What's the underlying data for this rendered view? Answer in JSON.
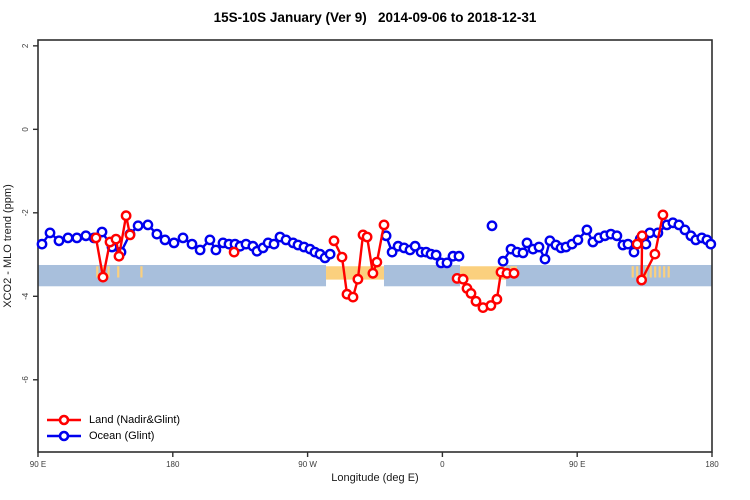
{
  "chart_data": {
    "type": "line",
    "title": "15S-10S January (Ver 9)   2014-09-06 to 2018-12-31",
    "xlabel": "Longitude (deg E)",
    "ylabel": "XCO2 - MLO trend (ppm)",
    "x_range": [
      90,
      540
    ],
    "ylim": [
      -7.73,
      2.14
    ],
    "grid": "off",
    "axis_color": "#2f2f2f",
    "tick_label_color": "#3c3c3c",
    "x_ticks": [
      {
        "value": 90,
        "label": "90 E"
      },
      {
        "value": 180,
        "label": "180"
      },
      {
        "value": 270,
        "label": "90 W"
      },
      {
        "value": 360,
        "label": "0"
      },
      {
        "value": 450,
        "label": "90 E"
      },
      {
        "value": 540,
        "label": "180"
      }
    ],
    "y_ticks": [
      {
        "value": 2,
        "label": "2"
      },
      {
        "value": 0,
        "label": "0"
      },
      {
        "value": -2,
        "label": "-2"
      },
      {
        "value": -4,
        "label": "-4"
      },
      {
        "value": -6,
        "label": "-6"
      }
    ],
    "bands": {
      "ocean_color": "#a8bfdc",
      "ocean_band_top": -3.25,
      "ocean_band_bottom": -3.76,
      "ocean_segments": [
        [
          90,
          282.3
        ],
        [
          321,
          371.8
        ],
        [
          402.5,
          540
        ]
      ],
      "land_color": "#fbd07e",
      "land_band_top": -3.28,
      "land_band_bottom": -3.6,
      "land_segments": [
        [
          282.3,
          321
        ],
        [
          371.8,
          402.5
        ]
      ],
      "land_tick_top": -3.28,
      "land_tick_bottom": -3.55,
      "land_tick_lons": [
        129.5,
        133.5,
        137,
        143.5,
        159,
        406,
        407.5,
        409,
        487,
        490,
        493,
        496,
        499,
        502,
        505,
        508,
        511
      ]
    },
    "legend": {
      "position": "bottom-left"
    },
    "series": [
      {
        "id": "land-series",
        "name": "Land (Nadir&Glint)",
        "color": "#ff0000",
        "segments": [
          [
            [
              128.7,
              -2.6
            ],
            [
              133.4,
              -3.54
            ],
            [
              138.1,
              -2.7
            ],
            [
              142.1,
              -2.63
            ],
            [
              144.1,
              -3.04
            ],
            [
              148.8,
              -2.07
            ],
            [
              151.4,
              -2.53
            ]
          ],
          [
            [
              287.6,
              -2.67
            ],
            [
              293.0,
              -3.06
            ],
            [
              296.3,
              -3.95
            ],
            [
              300.3,
              -4.02
            ],
            [
              303.6,
              -3.59
            ],
            [
              307.0,
              -2.53
            ],
            [
              309.7,
              -2.58
            ],
            [
              313.6,
              -3.45
            ],
            [
              316.3,
              -3.18
            ],
            [
              321.0,
              -2.29
            ]
          ],
          [
            [
              369.8,
              -3.57
            ],
            [
              373.8,
              -3.59
            ],
            [
              376.4,
              -3.81
            ],
            [
              379.1,
              -3.93
            ],
            [
              382.4,
              -4.12
            ],
            [
              387.1,
              -4.27
            ],
            [
              392.4,
              -4.22
            ],
            [
              396.4,
              -4.07
            ],
            [
              399.1,
              -3.42
            ],
            [
              403.1,
              -3.45
            ],
            [
              407.8,
              -3.45
            ]
          ],
          [
            [
              490.0,
              -2.75
            ],
            [
              493.3,
              -2.55
            ],
            [
              493.0,
              -3.61
            ],
            [
              501.9,
              -2.99
            ],
            [
              507.2,
              -2.05
            ]
          ]
        ],
        "isolated_points": [
          [
            220.9,
            -2.94
          ]
        ]
      },
      {
        "id": "ocean-series",
        "name": "Ocean (Glint)",
        "color": "#0000ee",
        "segments": [
          [
            [
              92.7,
              -2.75
            ],
            [
              98,
              -2.48
            ],
            [
              104,
              -2.67
            ],
            [
              110,
              -2.6
            ],
            [
              116,
              -2.6
            ],
            [
              122,
              -2.55
            ],
            [
              127.4,
              -2.6
            ],
            [
              132.7,
              -2.46
            ],
            [
              139.4,
              -2.82
            ],
            [
              145.4,
              -2.94
            ],
            [
              151.4,
              -2.51
            ],
            [
              156.8,
              -2.31
            ],
            [
              163.4,
              -2.29
            ],
            [
              169.4,
              -2.51
            ],
            [
              174.8,
              -2.65
            ],
            [
              180.8,
              -2.72
            ],
            [
              186.8,
              -2.6
            ],
            [
              192.8,
              -2.75
            ],
            [
              198.2,
              -2.89
            ],
            [
              204.8,
              -2.65
            ],
            [
              208.8,
              -2.89
            ],
            [
              213.5,
              -2.72
            ],
            [
              217.5,
              -2.75
            ],
            [
              221.5,
              -2.75
            ],
            [
              224.9,
              -2.8
            ],
            [
              228.9,
              -2.75
            ],
            [
              233.5,
              -2.8
            ],
            [
              236.2,
              -2.92
            ],
            [
              240.2,
              -2.84
            ],
            [
              243.6,
              -2.72
            ],
            [
              247.6,
              -2.75
            ],
            [
              251.6,
              -2.58
            ],
            [
              255.6,
              -2.65
            ],
            [
              260.3,
              -2.72
            ],
            [
              263.6,
              -2.77
            ],
            [
              267.6,
              -2.82
            ],
            [
              271.6,
              -2.87
            ],
            [
              274.9,
              -2.94
            ],
            [
              278.3,
              -2.99
            ],
            [
              281.6,
              -3.08
            ],
            [
              285,
              -2.99
            ]
          ],
          [
            [
              322.4,
              -2.55
            ],
            [
              326.4,
              -2.94
            ],
            [
              330.4,
              -2.8
            ],
            [
              334.4,
              -2.84
            ],
            [
              338.4,
              -2.89
            ],
            [
              341.8,
              -2.8
            ],
            [
              345.8,
              -2.94
            ],
            [
              349.1,
              -2.94
            ],
            [
              352.4,
              -2.99
            ],
            [
              355.8,
              -3.01
            ],
            [
              359.1,
              -3.2
            ],
            [
              363.1,
              -3.2
            ],
            [
              367.1,
              -3.04
            ],
            [
              371.1,
              -3.04
            ]
          ],
          [
            [
              400.5,
              -3.16
            ],
            [
              405.8,
              -2.87
            ],
            [
              409.8,
              -2.94
            ],
            [
              413.8,
              -2.96
            ],
            [
              416.5,
              -2.72
            ],
            [
              420.5,
              -2.87
            ],
            [
              424.5,
              -2.82
            ],
            [
              428.5,
              -3.11
            ],
            [
              431.8,
              -2.67
            ],
            [
              435.8,
              -2.77
            ],
            [
              439.2,
              -2.84
            ],
            [
              442.5,
              -2.82
            ],
            [
              446.5,
              -2.75
            ],
            [
              450.5,
              -2.65
            ],
            [
              456.5,
              -2.41
            ],
            [
              460.5,
              -2.7
            ],
            [
              464.5,
              -2.6
            ],
            [
              468.5,
              -2.55
            ],
            [
              472.5,
              -2.51
            ],
            [
              476.5,
              -2.55
            ],
            [
              480.5,
              -2.77
            ],
            [
              483.9,
              -2.75
            ],
            [
              487.9,
              -2.94
            ],
            [
              492,
              -2.63
            ],
            [
              495.9,
              -2.75
            ],
            [
              498.5,
              -2.48
            ],
            [
              503.9,
              -2.48
            ],
            [
              509.9,
              -2.29
            ],
            [
              513.9,
              -2.24
            ],
            [
              517.9,
              -2.29
            ],
            [
              521.9,
              -2.41
            ],
            [
              525.9,
              -2.55
            ],
            [
              529.2,
              -2.65
            ],
            [
              533.2,
              -2.6
            ],
            [
              536.6,
              -2.65
            ],
            [
              539.2,
              -2.75
            ]
          ]
        ],
        "isolated_points": [
          [
            393.1,
            -2.31
          ]
        ]
      }
    ]
  }
}
